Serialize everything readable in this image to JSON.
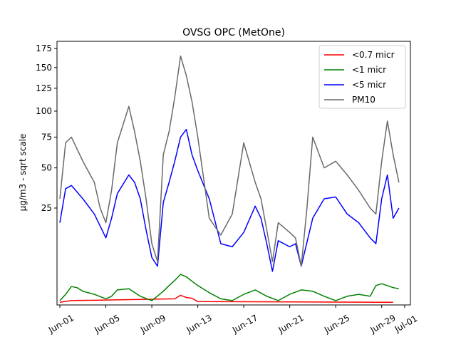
{
  "chart_data": {
    "type": "line",
    "title": "OVSG OPC (MetOne)",
    "xlabel": "",
    "ylabel": "µg/m3 - sqrt scale",
    "y_scale": "sqrt",
    "ylim": [
      0,
      185
    ],
    "xlim": [
      "2025-05-31T18:00",
      "2025-07-01T12:00"
    ],
    "y_ticks": [
      25,
      50,
      75,
      100,
      125,
      150,
      175
    ],
    "x_ticks": [
      {
        "date": "2025-06-01",
        "label": "Jun-01"
      },
      {
        "date": "2025-06-05",
        "label": "Jun-05"
      },
      {
        "date": "2025-06-09",
        "label": "Jun-09"
      },
      {
        "date": "2025-06-13",
        "label": "Jun-13"
      },
      {
        "date": "2025-06-17",
        "label": "Jun-17"
      },
      {
        "date": "2025-06-21",
        "label": "Jun-21"
      },
      {
        "date": "2025-06-25",
        "label": "Jun-25"
      },
      {
        "date": "2025-06-29",
        "label": "Jun-29"
      },
      {
        "date": "2025-07-01",
        "label": "Jul-01"
      }
    ],
    "grid": false,
    "legend_position": "top-right",
    "series": [
      {
        "name": "<0.7 micr",
        "color": "#ff0000",
        "x": [
          "2025-06-01",
          "2025-06-02",
          "2025-06-11",
          "2025-06-11T12:00",
          "2025-06-12",
          "2025-06-12T12:00",
          "2025-06-13",
          "2025-06-29",
          "2025-06-30"
        ],
        "values": [
          0.02,
          0.05,
          0.1,
          0.25,
          0.15,
          0.12,
          0.03,
          0.02,
          0.02
        ]
      },
      {
        "name": "<1 micr",
        "color": "#008000",
        "x": [
          "2025-06-01",
          "2025-06-01T12:00",
          "2025-06-02",
          "2025-06-02T12:00",
          "2025-06-03",
          "2025-06-04",
          "2025-06-05",
          "2025-06-05T12:00",
          "2025-06-06",
          "2025-06-07",
          "2025-06-08",
          "2025-06-09",
          "2025-06-10",
          "2025-06-10T12:00",
          "2025-06-11",
          "2025-06-11T12:00",
          "2025-06-12",
          "2025-06-12T12:00",
          "2025-06-13",
          "2025-06-14",
          "2025-06-15",
          "2025-06-16",
          "2025-06-17",
          "2025-06-18",
          "2025-06-19",
          "2025-06-20",
          "2025-06-21",
          "2025-06-22",
          "2025-06-23",
          "2025-06-24",
          "2025-06-25",
          "2025-06-26",
          "2025-06-27",
          "2025-06-28",
          "2025-06-28T12:00",
          "2025-06-29",
          "2025-06-30",
          "2025-06-30T12:00"
        ],
        "values": [
          0.05,
          0.3,
          0.9,
          0.8,
          0.5,
          0.3,
          0.1,
          0.2,
          0.6,
          0.7,
          0.2,
          0.05,
          0.5,
          1.0,
          1.6,
          2.5,
          2.1,
          1.5,
          1.0,
          0.4,
          0.1,
          0.05,
          0.3,
          0.6,
          0.2,
          0.05,
          0.3,
          0.6,
          0.5,
          0.2,
          0.05,
          0.2,
          0.3,
          0.2,
          1.0,
          1.2,
          0.8,
          0.7
        ]
      },
      {
        "name": "<5 micr",
        "color": "#0000ff",
        "x": [
          "2025-06-01",
          "2025-06-01T12:00",
          "2025-06-02",
          "2025-06-03",
          "2025-06-04",
          "2025-06-05",
          "2025-06-05T12:00",
          "2025-06-06",
          "2025-06-07",
          "2025-06-07T12:00",
          "2025-06-08",
          "2025-06-08T12:00",
          "2025-06-09",
          "2025-06-09T12:00",
          "2025-06-10",
          "2025-06-10T12:00",
          "2025-06-11",
          "2025-06-11T12:00",
          "2025-06-12",
          "2025-06-12T12:00",
          "2025-06-13",
          "2025-06-14",
          "2025-06-15",
          "2025-06-16",
          "2025-06-17",
          "2025-06-18",
          "2025-06-18T12:00",
          "2025-06-19",
          "2025-06-19T12:00",
          "2025-06-20",
          "2025-06-21",
          "2025-06-21T12:00",
          "2025-06-22",
          "2025-06-23",
          "2025-06-24",
          "2025-06-25",
          "2025-06-26",
          "2025-06-27",
          "2025-06-28",
          "2025-06-28T12:00",
          "2025-06-29",
          "2025-06-29T12:00",
          "2025-06-30",
          "2025-06-30T12:00"
        ],
        "values": [
          18,
          36,
          38,
          30,
          22,
          12,
          20,
          33,
          45,
          40,
          30,
          15,
          6,
          4,
          28,
          40,
          55,
          75,
          82,
          60,
          48,
          30,
          10,
          9,
          14,
          26,
          20,
          10,
          3,
          11,
          9,
          10,
          4,
          20,
          30,
          31,
          22,
          18,
          12,
          10,
          30,
          45,
          20,
          25
        ]
      },
      {
        "name": "PM10",
        "color": "#696969",
        "x": [
          "2025-06-01",
          "2025-06-01T12:00",
          "2025-06-02",
          "2025-06-03",
          "2025-06-04",
          "2025-06-04T12:00",
          "2025-06-05",
          "2025-06-05T12:00",
          "2025-06-06",
          "2025-06-07",
          "2025-06-07T12:00",
          "2025-06-08",
          "2025-06-08T12:00",
          "2025-06-09",
          "2025-06-09T12:00",
          "2025-06-10",
          "2025-06-10T12:00",
          "2025-06-11",
          "2025-06-11T12:00",
          "2025-06-12",
          "2025-06-12T12:00",
          "2025-06-13",
          "2025-06-14",
          "2025-06-15",
          "2025-06-16",
          "2025-06-17",
          "2025-06-18",
          "2025-06-18T12:00",
          "2025-06-19",
          "2025-06-19T12:00",
          "2025-06-20",
          "2025-06-21",
          "2025-06-21T12:00",
          "2025-06-22",
          "2025-06-22T12:00",
          "2025-06-23",
          "2025-06-24",
          "2025-06-25",
          "2025-06-26",
          "2025-06-27",
          "2025-06-28",
          "2025-06-28T12:00",
          "2025-06-29",
          "2025-06-29T12:00",
          "2025-06-30",
          "2025-06-30T12:00"
        ],
        "values": [
          30,
          70,
          75,
          55,
          40,
          25,
          18,
          35,
          70,
          105,
          80,
          55,
          30,
          10,
          5,
          60,
          80,
          115,
          165,
          140,
          110,
          75,
          20,
          13,
          22,
          70,
          40,
          30,
          15,
          5,
          18,
          14,
          12,
          4,
          25,
          75,
          50,
          55,
          45,
          35,
          25,
          22,
          55,
          90,
          60,
          40
        ]
      }
    ]
  }
}
